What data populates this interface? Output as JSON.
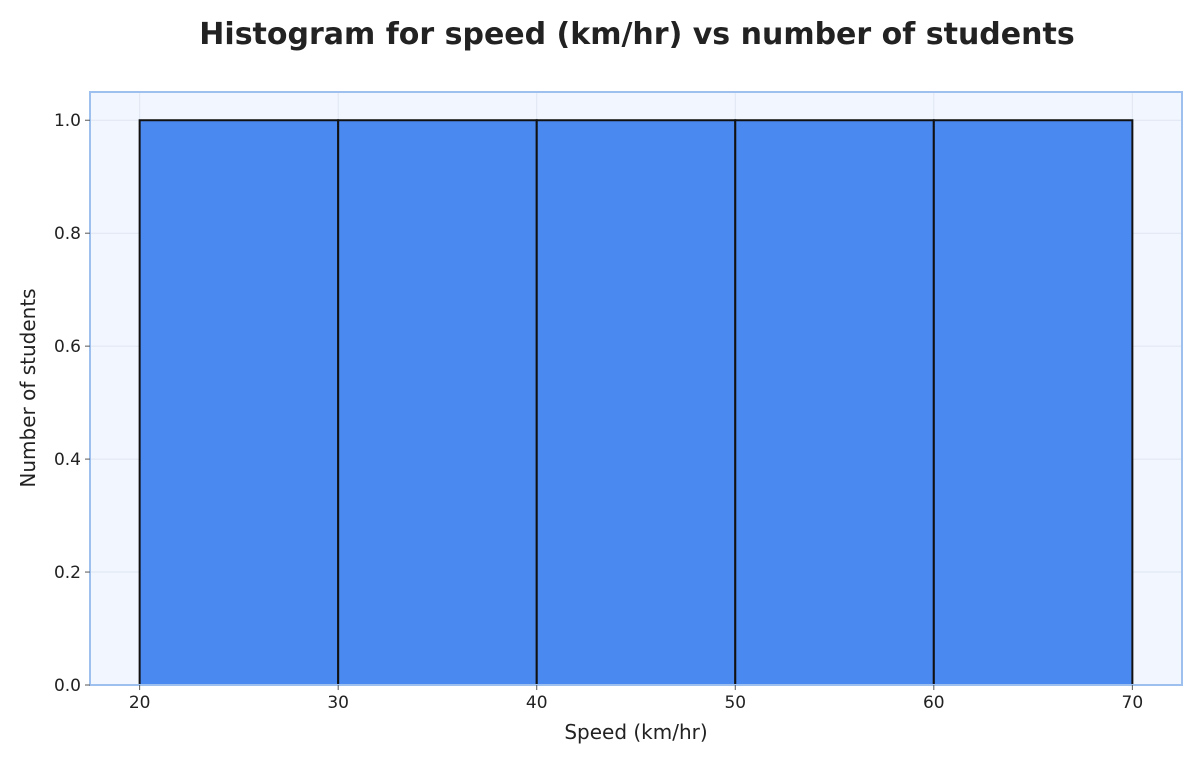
{
  "chart_data": {
    "type": "bar",
    "title": "Histogram for speed (km/hr) vs number of students",
    "xlabel": "Speed (km/hr)",
    "ylabel": "Number of students",
    "bins": [
      {
        "start": 20,
        "end": 30,
        "value": 1
      },
      {
        "start": 30,
        "end": 40,
        "value": 1
      },
      {
        "start": 40,
        "end": 50,
        "value": 1
      },
      {
        "start": 50,
        "end": 60,
        "value": 1
      },
      {
        "start": 60,
        "end": 70,
        "value": 1
      }
    ],
    "xlim": [
      17.5,
      72.5
    ],
    "ylim": [
      0,
      1.05
    ],
    "x_ticks": [
      "20",
      "30",
      "40",
      "50",
      "60",
      "70"
    ],
    "y_ticks": [
      "0.0",
      "0.2",
      "0.4",
      "0.6",
      "0.8",
      "1.0"
    ],
    "grid": true,
    "colors": {
      "bar_fill": "#4a89f0",
      "bar_edge": "#111111",
      "plot_background": "#f2f6fe",
      "plot_border": "#9ec0ef",
      "grid": "#dfe6f2"
    }
  }
}
